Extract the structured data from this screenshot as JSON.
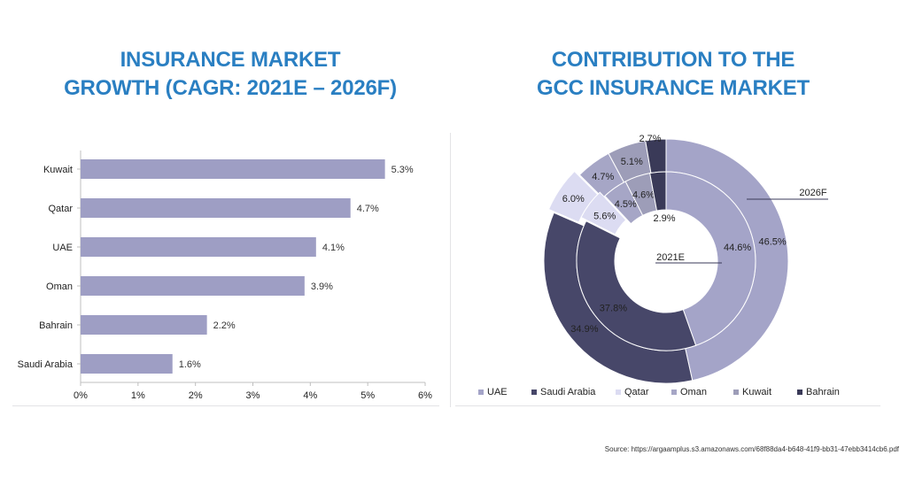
{
  "left_title": {
    "line1": "INSURANCE MARKET",
    "line2": "GROWTH (CAGR: 2021E – 2026F)"
  },
  "right_title": {
    "line1": "CONTRIBUTION TO THE",
    "line2": "GCC INSURANCE MARKET"
  },
  "source": "Source:  https://argaamplus.s3.amazonaws.com/68f88da4-b648-41f9-bb31-47ebb3414cb6.pdf",
  "colors": {
    "bar": "#9e9ec4",
    "title": "#2a7fc2",
    "uae": "#a4a4c8",
    "saudi": "#474769",
    "qatar": "#dcdcf2",
    "oman": "#a6a6c6",
    "kuwait": "#9d9db8",
    "bahrain": "#3a3a58"
  },
  "chart_data": [
    {
      "type": "bar",
      "orientation": "horizontal",
      "title": "INSURANCE MARKET GROWTH (CAGR: 2021E – 2026F)",
      "categories": [
        "Kuwait",
        "Qatar",
        "UAE",
        "Oman",
        "Bahrain",
        "Saudi Arabia"
      ],
      "values": [
        5.3,
        4.7,
        4.1,
        3.9,
        2.2,
        1.6
      ],
      "value_labels": [
        "5.3%",
        "4.7%",
        "4.1%",
        "3.9%",
        "2.2%",
        "1.6%"
      ],
      "xlim": [
        0,
        6
      ],
      "xticks": [
        "0%",
        "1%",
        "2%",
        "3%",
        "4%",
        "5%",
        "6%"
      ],
      "grid": false
    },
    {
      "type": "pie",
      "variant": "donut",
      "title": "CONTRIBUTION TO THE GCC INSURANCE MARKET",
      "categories": [
        "UAE",
        "Saudi Arabia",
        "Qatar",
        "Oman",
        "Kuwait",
        "Bahrain"
      ],
      "series": [
        {
          "name": "2026F",
          "values": [
            46.5,
            34.9,
            6.0,
            4.7,
            5.1,
            2.7
          ],
          "labels": [
            "46.5%",
            "34.9%",
            "6.0%",
            "4.7%",
            "5.1%",
            "2.7%"
          ]
        },
        {
          "name": "2021E",
          "values": [
            44.6,
            37.8,
            5.6,
            4.5,
            4.6,
            2.9
          ],
          "labels": [
            "44.6%",
            "37.8%",
            "5.6%",
            "4.5%",
            "4.6%",
            "2.9%"
          ]
        }
      ],
      "legend": "bottom"
    }
  ]
}
